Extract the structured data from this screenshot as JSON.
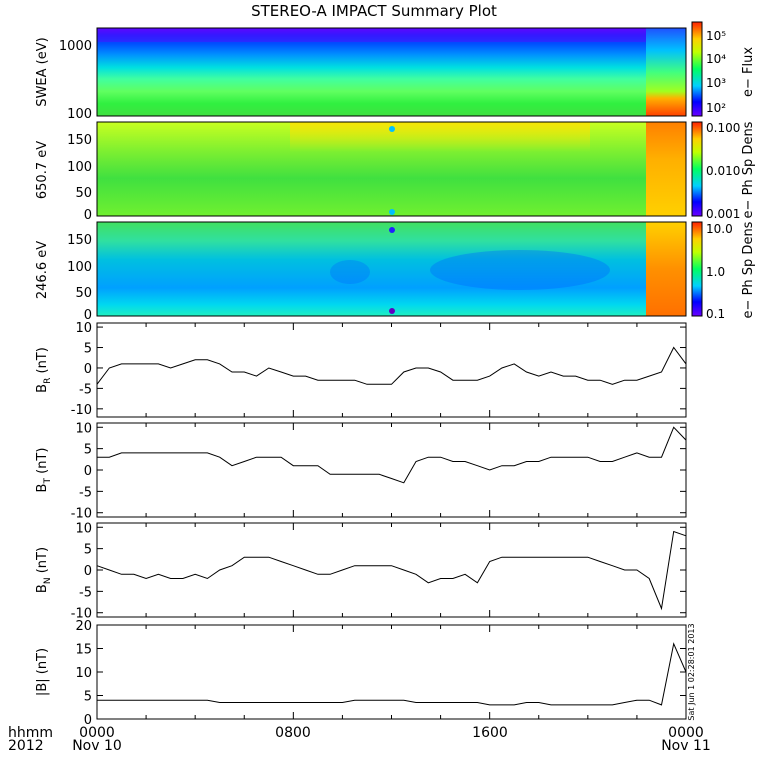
{
  "title": "STEREO-A IMPACT Summary Plot",
  "footer": {
    "hhmm": "hhmm",
    "year": "2012",
    "x_ticks": [
      "0000",
      "0800",
      "1600",
      "0000"
    ],
    "start_date": "Nov 10",
    "end_date": "Nov 11"
  },
  "side_stamp": "Sat Jun 1 02:28:01 2013",
  "chart_data": [
    {
      "type": "heatmap",
      "ylabel": "SWEA (eV)",
      "y_log": true,
      "y_ticks": [
        "1000",
        "100"
      ],
      "colorbar": {
        "label": "e− Flux",
        "ticks": [
          "10⁵",
          "10⁴",
          "10³",
          "10²"
        ]
      },
      "description_values": {
        "low_energy": "high flux",
        "high_energy": "low flux"
      }
    },
    {
      "type": "heatmap",
      "ylabel": "650.7 eV",
      "y_ticks": [
        "150",
        "100",
        "50",
        "0"
      ],
      "ylim": [
        0,
        180
      ],
      "colorbar": {
        "label": "e− Ph Sp Dens",
        "ticks": [
          "0.100",
          "0.010",
          "0.001"
        ]
      }
    },
    {
      "type": "heatmap",
      "ylabel": "246.6 eV",
      "y_ticks": [
        "150",
        "100",
        "50",
        "0"
      ],
      "ylim": [
        0,
        180
      ],
      "colorbar": {
        "label": "e− Ph Sp Dens",
        "ticks": [
          "10.0",
          "1.0",
          "0.1"
        ]
      }
    },
    {
      "type": "line",
      "ylabel_base": "B",
      "ylabel_sub": "R",
      "ylabel_unit": " (nT)",
      "y_ticks": [
        10,
        5,
        0,
        -5,
        -10
      ],
      "ylim": [
        -12,
        11
      ],
      "x_hours": [
        0,
        0.5,
        1,
        1.5,
        2,
        2.5,
        3,
        3.5,
        4,
        4.5,
        5,
        5.5,
        6,
        6.5,
        7,
        7.5,
        8,
        8.5,
        9,
        9.5,
        10,
        10.5,
        11,
        11.5,
        12,
        12.5,
        13,
        13.5,
        14,
        14.5,
        15,
        15.5,
        16,
        16.5,
        17,
        17.5,
        18,
        18.5,
        19,
        19.5,
        20,
        20.5,
        21,
        21.5,
        22,
        22.5,
        23,
        23.5,
        24
      ],
      "values": [
        -4,
        0,
        1,
        1,
        1,
        1,
        0,
        1,
        2,
        2,
        1,
        -1,
        -1,
        -2,
        0,
        -1,
        -2,
        -2,
        -3,
        -3,
        -3,
        -3,
        -4,
        -4,
        -4,
        -1,
        0,
        0,
        -1,
        -3,
        -3,
        -3,
        -2,
        0,
        1,
        -1,
        -2,
        -1,
        -2,
        -2,
        -3,
        -3,
        -4,
        -3,
        -3,
        -2,
        -1,
        5,
        1
      ]
    },
    {
      "type": "line",
      "ylabel_base": "B",
      "ylabel_sub": "T",
      "ylabel_unit": " (nT)",
      "y_ticks": [
        10,
        5,
        0,
        -5,
        -10
      ],
      "ylim": [
        -11,
        11
      ],
      "x_hours": [
        0,
        0.5,
        1,
        1.5,
        2,
        2.5,
        3,
        3.5,
        4,
        4.5,
        5,
        5.5,
        6,
        6.5,
        7,
        7.5,
        8,
        8.5,
        9,
        9.5,
        10,
        10.5,
        11,
        11.5,
        12,
        12.5,
        13,
        13.5,
        14,
        14.5,
        15,
        15.5,
        16,
        16.5,
        17,
        17.5,
        18,
        18.5,
        19,
        19.5,
        20,
        20.5,
        21,
        21.5,
        22,
        22.5,
        23,
        23.5,
        24
      ],
      "values": [
        3,
        3,
        4,
        4,
        4,
        4,
        4,
        4,
        4,
        4,
        3,
        1,
        2,
        3,
        3,
        3,
        1,
        1,
        1,
        -1,
        -1,
        -1,
        -1,
        -1,
        -2,
        -3,
        2,
        3,
        3,
        2,
        2,
        1,
        0,
        1,
        1,
        2,
        2,
        3,
        3,
        3,
        3,
        2,
        2,
        3,
        4,
        3,
        3,
        10,
        7
      ]
    },
    {
      "type": "line",
      "ylabel_base": "B",
      "ylabel_sub": "N",
      "ylabel_unit": " (nT)",
      "y_ticks": [
        10,
        5,
        0,
        -5,
        -10
      ],
      "ylim": [
        -11,
        11
      ],
      "x_hours": [
        0,
        0.5,
        1,
        1.5,
        2,
        2.5,
        3,
        3.5,
        4,
        4.5,
        5,
        5.5,
        6,
        6.5,
        7,
        7.5,
        8,
        8.5,
        9,
        9.5,
        10,
        10.5,
        11,
        11.5,
        12,
        12.5,
        13,
        13.5,
        14,
        14.5,
        15,
        15.5,
        16,
        16.5,
        17,
        17.5,
        18,
        18.5,
        19,
        19.5,
        20,
        20.5,
        21,
        21.5,
        22,
        22.5,
        23,
        23.5,
        24
      ],
      "values": [
        1,
        0,
        -1,
        -1,
        -2,
        -1,
        -2,
        -2,
        -1,
        -2,
        0,
        1,
        3,
        3,
        3,
        2,
        1,
        0,
        -1,
        -1,
        0,
        1,
        1,
        1,
        1,
        0,
        -1,
        -3,
        -2,
        -2,
        -1,
        -3,
        2,
        3,
        3,
        3,
        3,
        3,
        3,
        3,
        3,
        2,
        1,
        0,
        0,
        -2,
        -9,
        9,
        8
      ]
    },
    {
      "type": "line",
      "ylabel": "|B| (nT)",
      "y_ticks": [
        20,
        15,
        10,
        5,
        0
      ],
      "ylim": [
        0,
        20
      ],
      "x_hours": [
        0,
        0.5,
        1,
        1.5,
        2,
        2.5,
        3,
        3.5,
        4,
        4.5,
        5,
        5.5,
        6,
        6.5,
        7,
        7.5,
        8,
        8.5,
        9,
        9.5,
        10,
        10.5,
        11,
        11.5,
        12,
        12.5,
        13,
        13.5,
        14,
        14.5,
        15,
        15.5,
        16,
        16.5,
        17,
        17.5,
        18,
        18.5,
        19,
        19.5,
        20,
        20.5,
        21,
        21.5,
        22,
        22.5,
        23,
        23.5,
        24
      ],
      "values": [
        4,
        4,
        4,
        4,
        4,
        4,
        4,
        4,
        4,
        4,
        3.5,
        3.5,
        3.5,
        3.5,
        3.5,
        3.5,
        3.5,
        3.5,
        3.5,
        3.5,
        3.5,
        4,
        4,
        4,
        4,
        4,
        3.5,
        3.5,
        3.5,
        3.5,
        3.5,
        3.5,
        3,
        3,
        3,
        3.5,
        3.5,
        3,
        3,
        3,
        3,
        3,
        3,
        3.5,
        4,
        4,
        3,
        16,
        10
      ]
    }
  ],
  "colors": {
    "line": "#000000",
    "bg": "#ffffff"
  }
}
